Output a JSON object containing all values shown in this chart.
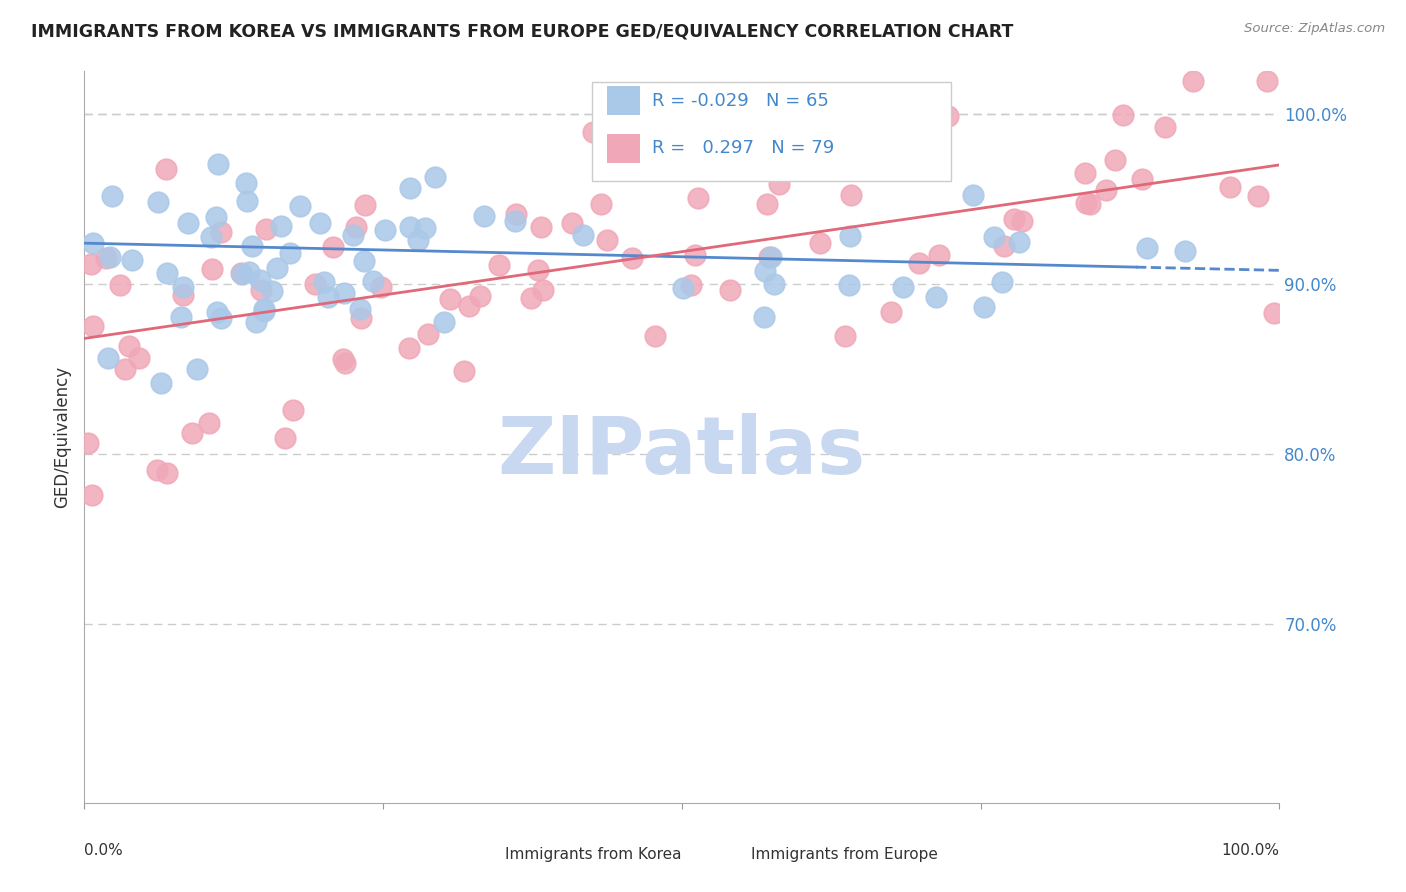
{
  "title": "IMMIGRANTS FROM KOREA VS IMMIGRANTS FROM EUROPE GED/EQUIVALENCY CORRELATION CHART",
  "source": "Source: ZipAtlas.com",
  "ylabel": "GED/Equivalency",
  "xlim": [
    0.0,
    1.0
  ],
  "ylim": [
    0.595,
    1.025
  ],
  "yticks": [
    0.7,
    0.8,
    0.9,
    1.0
  ],
  "ytick_labels": [
    "70.0%",
    "80.0%",
    "90.0%",
    "100.0%"
  ],
  "legend_r_korea": "-0.029",
  "legend_n_korea": "65",
  "legend_r_europe": "0.297",
  "legend_n_europe": "79",
  "korea_color": "#aac8e8",
  "europe_color": "#f0a8b8",
  "korea_line_color": "#5588cc",
  "europe_line_color": "#e06878",
  "background_color": "#ffffff",
  "grid_color": "#cccccc",
  "title_color": "#222222",
  "watermark_color": "#c8d8f0",
  "korea_line_start_y": 0.924,
  "korea_line_end_y": 0.908,
  "europe_line_start_y": 0.868,
  "europe_line_end_y": 0.97
}
